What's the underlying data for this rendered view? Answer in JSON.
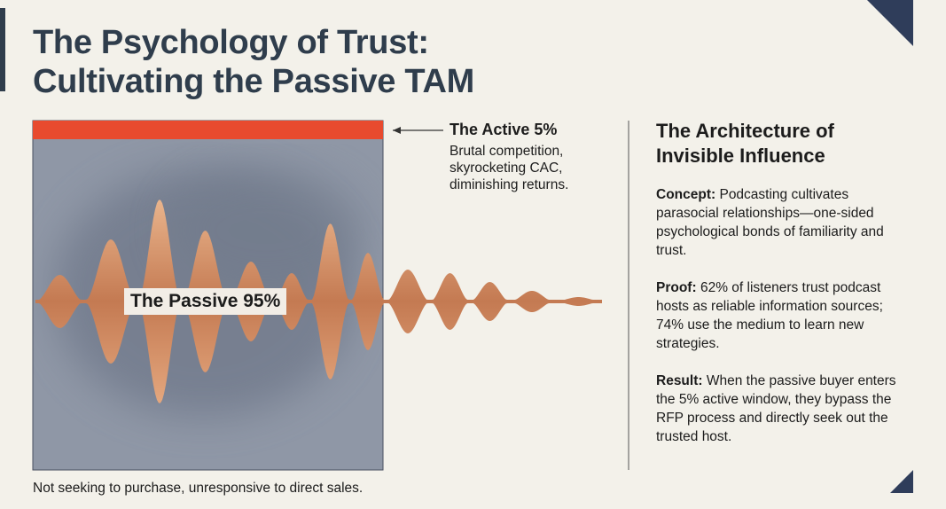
{
  "header": {
    "title": [
      "The Psychology of Trust:",
      "Cultivating the Passive TAM"
    ]
  },
  "figure": {
    "active": {
      "label": "The Active 5%",
      "description": "Brutal competition, skyrocketing CAC, diminishing returns."
    },
    "passive": {
      "label": "The Passive 95%"
    },
    "caption": "Not seeking to purchase, unresponsive to direct sales."
  },
  "sidebar": {
    "heading": "The Architecture of Invisible Influence",
    "items": [
      {
        "term": "Concept:",
        "text": "Podcasting cultivates parasocial relationships—one-sided psychological bonds of familiarity and trust."
      },
      {
        "term": "Proof:",
        "text": "62% of listeners trust podcast hosts as reliable information sources; 74% use the medium to learn new strategies."
      },
      {
        "term": "Result:",
        "text": "When the passive buyer enters the 5% active window, they bypass the RFP process and directly seek out the trusted host."
      }
    ]
  }
}
